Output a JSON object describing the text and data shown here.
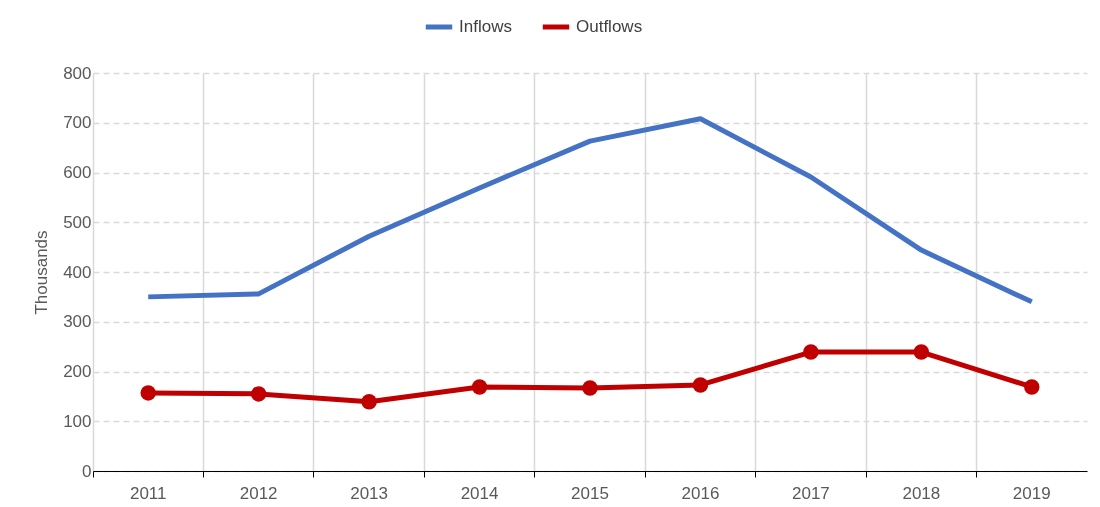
{
  "chart_data": {
    "type": "line",
    "ylabel": "Thousands",
    "categories": [
      "2011",
      "2012",
      "2013",
      "2014",
      "2015",
      "2016",
      "2017",
      "2018",
      "2019"
    ],
    "series": [
      {
        "name": "Inflows",
        "color": "#4472c4",
        "marker": "none",
        "values": [
          350,
          356,
          472,
          569,
          663,
          708,
          591,
          444,
          340
        ]
      },
      {
        "name": "Outflows",
        "color": "#c00000",
        "marker": "circle",
        "values": [
          157,
          155,
          139,
          169,
          167,
          173,
          239,
          239,
          169
        ]
      }
    ],
    "ylim": [
      0,
      800
    ],
    "yticks": [
      0,
      100,
      200,
      300,
      400,
      500,
      600,
      700,
      800
    ],
    "grid": true,
    "legend": "top"
  }
}
